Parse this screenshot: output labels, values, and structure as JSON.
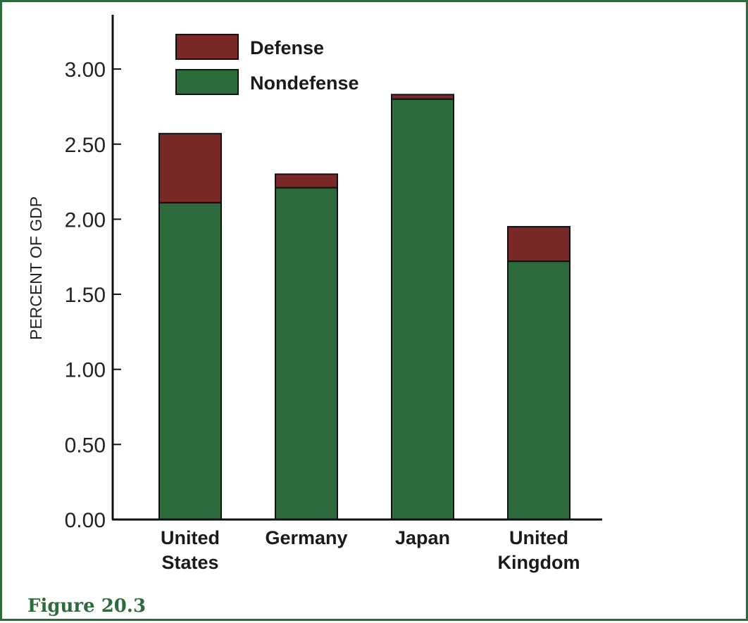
{
  "figure_label": "Figure 20.3",
  "colors": {
    "defense": "#7a2828",
    "nondefense": "#2e6b3c",
    "frame": "#2e6b3c",
    "axis": "#111111"
  },
  "chart_data": {
    "type": "bar",
    "stacked": true,
    "title": "",
    "xlabel": "",
    "ylabel": "PERCENT OF GDP",
    "ylim": [
      0,
      3.3
    ],
    "yticks": [
      0,
      0.5,
      1.0,
      1.5,
      2.0,
      2.5,
      3.0
    ],
    "ytick_labels": [
      "0.00",
      "0.50",
      "1.00",
      "1.50",
      "2.00",
      "2.50",
      "3.00"
    ],
    "categories": [
      [
        "United",
        "States"
      ],
      [
        "Germany"
      ],
      [
        "Japan"
      ],
      [
        "United",
        "Kingdom"
      ]
    ],
    "series": [
      {
        "name": "Nondefense",
        "values": [
          2.11,
          2.21,
          2.8,
          1.72
        ]
      },
      {
        "name": "Defense",
        "values": [
          0.46,
          0.09,
          0.03,
          0.23
        ]
      }
    ],
    "legend": {
      "position": "top-left",
      "order": [
        "Defense",
        "Nondefense"
      ]
    },
    "grid": false
  }
}
